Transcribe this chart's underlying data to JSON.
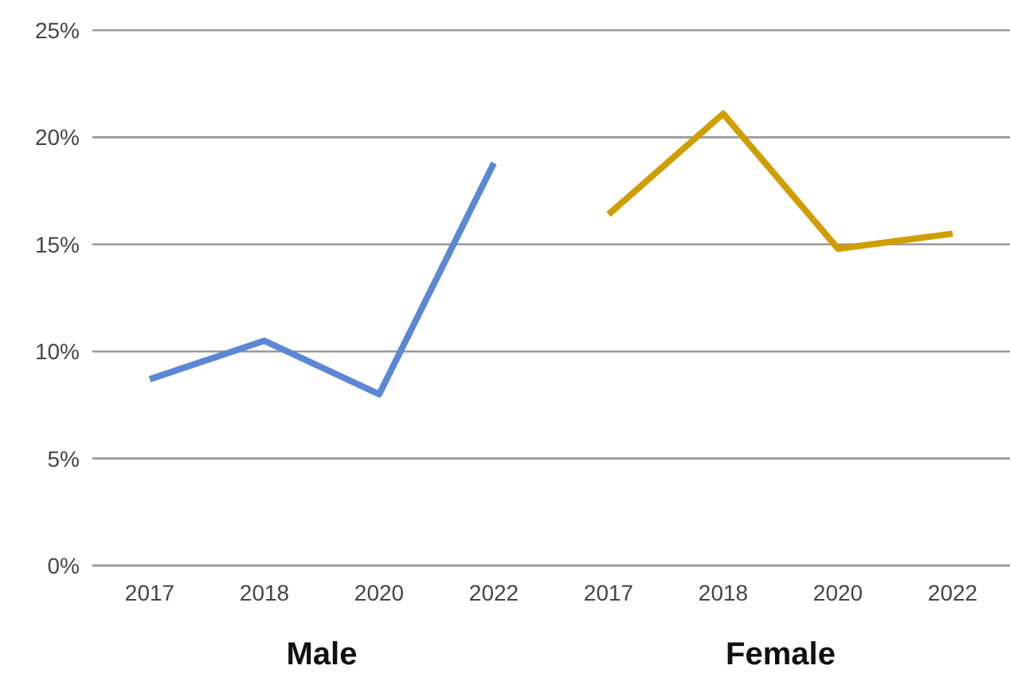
{
  "chart_data": {
    "type": "line",
    "categories": [
      "2017",
      "2018",
      "2020",
      "2022",
      "2017",
      "2018",
      "2020",
      "2022"
    ],
    "series": [
      {
        "color": "#5b87d4",
        "values": [
          8.7,
          10.5,
          8.0,
          18.8,
          null,
          null,
          null,
          null
        ]
      },
      {
        "color": "#d09e00",
        "values": [
          null,
          null,
          null,
          null,
          16.4,
          21.1,
          14.8,
          15.5
        ]
      }
    ],
    "ylim": [
      0,
      25
    ],
    "yticks": [
      {
        "value": 0,
        "label": "0%"
      },
      {
        "value": 5,
        "label": "5%"
      },
      {
        "value": 10,
        "label": "10%"
      },
      {
        "value": 15,
        "label": "15%"
      },
      {
        "value": 20,
        "label": "20%"
      },
      {
        "value": 25,
        "label": "25%"
      }
    ],
    "annotations": [
      "Male",
      "Female"
    ],
    "grid": "y",
    "legend": false,
    "marker": "none",
    "line_style": "solid"
  }
}
